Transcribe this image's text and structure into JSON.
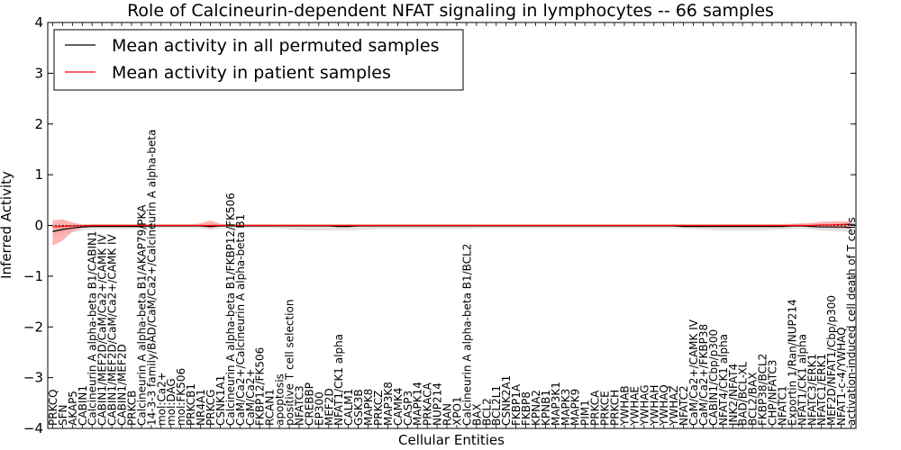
{
  "chart_data": {
    "type": "line",
    "title": "Role of Calcineurin-dependent NFAT signaling in lymphocytes -- 66 samples",
    "xlabel": "Cellular Entities",
    "ylabel": "Inferred Activity",
    "ylim": [
      -4,
      4
    ],
    "yticks": [
      "4",
      "3",
      "2",
      "1",
      "0",
      "−1",
      "−2",
      "−3",
      "−4"
    ],
    "grid": false,
    "legend_position": "upper-left",
    "categories": [
      "PRKCQ",
      "SFN",
      "AKAP5",
      "CABIN1",
      "Calcineurin A alpha-beta B1/CABIN1",
      "CABIN1/MEF2D/CaM/Ca2+/CAMK IV",
      "CABIN1/MEF2D/CaM/Ca2+/CAMK IV",
      "CABIN1/MEF2D",
      "PRKCB",
      "Calcineurin A alpha-beta B1/AKAP79/PKA",
      "14-3-3 family/BAD/CaM/Ca2+/Calcineurin A alpha-beta",
      "mol:Ca2+",
      "mol:DAG",
      "mol:FK506",
      "PRKCB1",
      "NR4A1",
      "PRKCG",
      "CSNK1A1",
      "Calcineurin A alpha-beta B1/FKBP12/FK506",
      "CaM/Ca2+/Calcineurin A alpha-beta B1",
      "CaM/Ca2+",
      "FKBP12/FK506",
      "RCAN1",
      "apoptosis",
      "positive T cell selection",
      "NFATC3",
      "CREBBP",
      "EP300",
      "MEF2D",
      "NFAT1/CK1 alpha",
      "CALM1",
      "GSK3B",
      "MAPK8",
      "PRKCZ",
      "MAP3K8",
      "CAMK4",
      "CASP3",
      "MAPK14",
      "PRKACA",
      "NUP214",
      "RAN",
      "XPO1",
      "Calcineurin A alpha-beta B1/BCL2",
      "BAX",
      "BCL2",
      "BCL2L1",
      "CSNK2A1",
      "FKBP1A",
      "FKBP8",
      "KPNA2",
      "KPNB1",
      "MAP3K1",
      "MAPK3",
      "MAPK9",
      "PIM1",
      "PRKCA",
      "PRKCE",
      "PRKCH",
      "YWHAB",
      "YWHAE",
      "YWHAG",
      "YWHAH",
      "YWHAQ",
      "YWHAZ",
      "NFATC2",
      "CaM/Ca2+/CAMK IV",
      "CaM/Ca2+/FKBP38",
      "CABIN1/Cbp/p300",
      "NFAT4/CK1 alpha",
      "JNK2/NFAT4",
      "BAD/BCL-XL",
      "BCL2/BAX",
      "FKBP38/BCL2",
      "CHP/NFATC3",
      "NFATC1",
      "Exportin 1/Ran/NUP214",
      "NFAT1/CK1 alpha",
      "NFATC3/ERK1",
      "NFATC1/ERK1",
      "MEF2D/NFAT1/Cbp/p300",
      "NFAT1-c-4/YWHAQ",
      "activation-induced cell death of T cells"
    ],
    "series": [
      {
        "name": "Mean activity in all permuted samples",
        "color": "#000000",
        "band_color": "#c8c8c8",
        "values": [
          -0.12,
          -0.08,
          -0.05,
          -0.03,
          -0.02,
          -0.02,
          -0.02,
          -0.02,
          -0.02,
          -0.02,
          -0.01,
          -0.01,
          -0.01,
          -0.01,
          -0.01,
          -0.01,
          -0.02,
          -0.01,
          -0.01,
          -0.01,
          -0.01,
          -0.01,
          -0.01,
          -0.01,
          -0.01,
          -0.01,
          -0.01,
          -0.01,
          -0.01,
          -0.02,
          -0.02,
          -0.01,
          -0.01,
          -0.01,
          -0.01,
          -0.01,
          -0.01,
          -0.01,
          -0.01,
          -0.01,
          -0.01,
          -0.01,
          -0.01,
          -0.01,
          -0.01,
          -0.01,
          -0.01,
          -0.01,
          -0.01,
          -0.01,
          -0.01,
          -0.01,
          -0.01,
          -0.01,
          -0.01,
          -0.01,
          -0.01,
          -0.01,
          -0.01,
          -0.01,
          -0.01,
          -0.01,
          -0.01,
          -0.01,
          -0.02,
          -0.02,
          -0.02,
          -0.02,
          -0.02,
          -0.02,
          -0.02,
          -0.02,
          -0.02,
          -0.02,
          -0.02,
          -0.01,
          -0.01,
          -0.02,
          -0.03,
          -0.03,
          -0.03,
          -0.04
        ],
        "lower": [
          -0.22,
          -0.18,
          -0.14,
          -0.1,
          -0.08,
          -0.07,
          -0.07,
          -0.07,
          -0.07,
          -0.06,
          -0.06,
          -0.05,
          -0.05,
          -0.05,
          -0.05,
          -0.06,
          -0.08,
          -0.06,
          -0.05,
          -0.05,
          -0.05,
          -0.05,
          -0.05,
          -0.06,
          -0.08,
          -0.09,
          -0.1,
          -0.1,
          -0.1,
          -0.1,
          -0.1,
          -0.09,
          -0.08,
          -0.07,
          -0.07,
          -0.07,
          -0.07,
          -0.07,
          -0.07,
          -0.07,
          -0.07,
          -0.07,
          -0.07,
          -0.06,
          -0.06,
          -0.06,
          -0.06,
          -0.06,
          -0.06,
          -0.06,
          -0.06,
          -0.06,
          -0.06,
          -0.06,
          -0.06,
          -0.06,
          -0.06,
          -0.06,
          -0.06,
          -0.06,
          -0.06,
          -0.06,
          -0.06,
          -0.06,
          -0.06,
          -0.07,
          -0.08,
          -0.09,
          -0.1,
          -0.1,
          -0.1,
          -0.1,
          -0.1,
          -0.09,
          -0.08,
          -0.07,
          -0.06,
          -0.08,
          -0.1,
          -0.11,
          -0.12,
          -0.13
        ],
        "upper": [
          0.02,
          0.02,
          0.02,
          0.02,
          0.03,
          0.03,
          0.03,
          0.03,
          0.03,
          0.03,
          0.03,
          0.03,
          0.03,
          0.03,
          0.03,
          0.03,
          0.04,
          0.03,
          0.03,
          0.03,
          0.03,
          0.03,
          0.03,
          0.03,
          0.03,
          0.03,
          0.03,
          0.03,
          0.03,
          0.03,
          0.03,
          0.03,
          0.03,
          0.03,
          0.03,
          0.03,
          0.03,
          0.03,
          0.03,
          0.03,
          0.03,
          0.03,
          0.03,
          0.03,
          0.03,
          0.03,
          0.03,
          0.03,
          0.03,
          0.03,
          0.03,
          0.03,
          0.03,
          0.03,
          0.03,
          0.03,
          0.03,
          0.03,
          0.03,
          0.03,
          0.03,
          0.03,
          0.03,
          0.03,
          0.03,
          0.03,
          0.03,
          0.03,
          0.03,
          0.03,
          0.03,
          0.03,
          0.03,
          0.03,
          0.03,
          0.03,
          0.04,
          0.04,
          0.04,
          0.04,
          0.04,
          0.04
        ]
      },
      {
        "name": "Mean activity in patient samples",
        "color": "#ff0000",
        "band_color": "#ff9999",
        "values": [
          -0.03,
          -0.02,
          -0.01,
          -0.01,
          0,
          0,
          0,
          0,
          0,
          0,
          0,
          0,
          0,
          0,
          0,
          0,
          0,
          0,
          0,
          0,
          0,
          0,
          0,
          0,
          0,
          0,
          0,
          0,
          0,
          0,
          0,
          0,
          0,
          0,
          0,
          0,
          0,
          0,
          0,
          0,
          0,
          0,
          0,
          0,
          0,
          0,
          0,
          0,
          0,
          0,
          0,
          0,
          0,
          0,
          0,
          0,
          0,
          0,
          0,
          0,
          0,
          0,
          0,
          0,
          0,
          0,
          0,
          0,
          0,
          0,
          0,
          0,
          0,
          0,
          0,
          0,
          0,
          0,
          0.01,
          0.01,
          0.02,
          0.02
        ],
        "lower": [
          -0.4,
          -0.3,
          -0.12,
          -0.05,
          -0.03,
          -0.02,
          -0.02,
          -0.02,
          -0.02,
          -0.02,
          -0.02,
          -0.02,
          -0.02,
          -0.02,
          -0.02,
          -0.02,
          -0.06,
          -0.02,
          -0.02,
          -0.02,
          -0.02,
          -0.02,
          -0.02,
          -0.02,
          -0.02,
          -0.02,
          -0.02,
          -0.02,
          -0.02,
          -0.03,
          -0.03,
          -0.02,
          -0.02,
          -0.02,
          -0.02,
          -0.02,
          -0.02,
          -0.02,
          -0.02,
          -0.02,
          -0.02,
          -0.02,
          -0.02,
          -0.02,
          -0.02,
          -0.02,
          -0.02,
          -0.02,
          -0.02,
          -0.02,
          -0.02,
          -0.02,
          -0.02,
          -0.02,
          -0.02,
          -0.02,
          -0.02,
          -0.02,
          -0.02,
          -0.02,
          -0.02,
          -0.02,
          -0.02,
          -0.02,
          -0.03,
          -0.03,
          -0.03,
          -0.03,
          -0.03,
          -0.03,
          -0.03,
          -0.03,
          -0.03,
          -0.03,
          -0.03,
          -0.03,
          -0.02,
          -0.03,
          -0.04,
          -0.05,
          -0.06,
          -0.06
        ],
        "upper": [
          0.1,
          0.12,
          0.06,
          0.02,
          0.02,
          0.02,
          0.02,
          0.02,
          0.02,
          0.02,
          0.02,
          0.02,
          0.02,
          0.02,
          0.02,
          0.04,
          0.1,
          0.03,
          0.02,
          0.02,
          0.02,
          0.02,
          0.02,
          0.02,
          0.02,
          0.02,
          0.02,
          0.02,
          0.02,
          0.02,
          0.02,
          0.02,
          0.02,
          0.02,
          0.02,
          0.02,
          0.02,
          0.02,
          0.02,
          0.02,
          0.02,
          0.02,
          0.02,
          0.02,
          0.02,
          0.02,
          0.02,
          0.02,
          0.02,
          0.02,
          0.02,
          0.02,
          0.02,
          0.02,
          0.02,
          0.02,
          0.02,
          0.02,
          0.02,
          0.02,
          0.02,
          0.02,
          0.02,
          0.02,
          0.02,
          0.02,
          0.02,
          0.02,
          0.02,
          0.02,
          0.02,
          0.02,
          0.02,
          0.02,
          0.02,
          0.03,
          0.04,
          0.05,
          0.07,
          0.08,
          0.08,
          0.08
        ]
      }
    ]
  }
}
